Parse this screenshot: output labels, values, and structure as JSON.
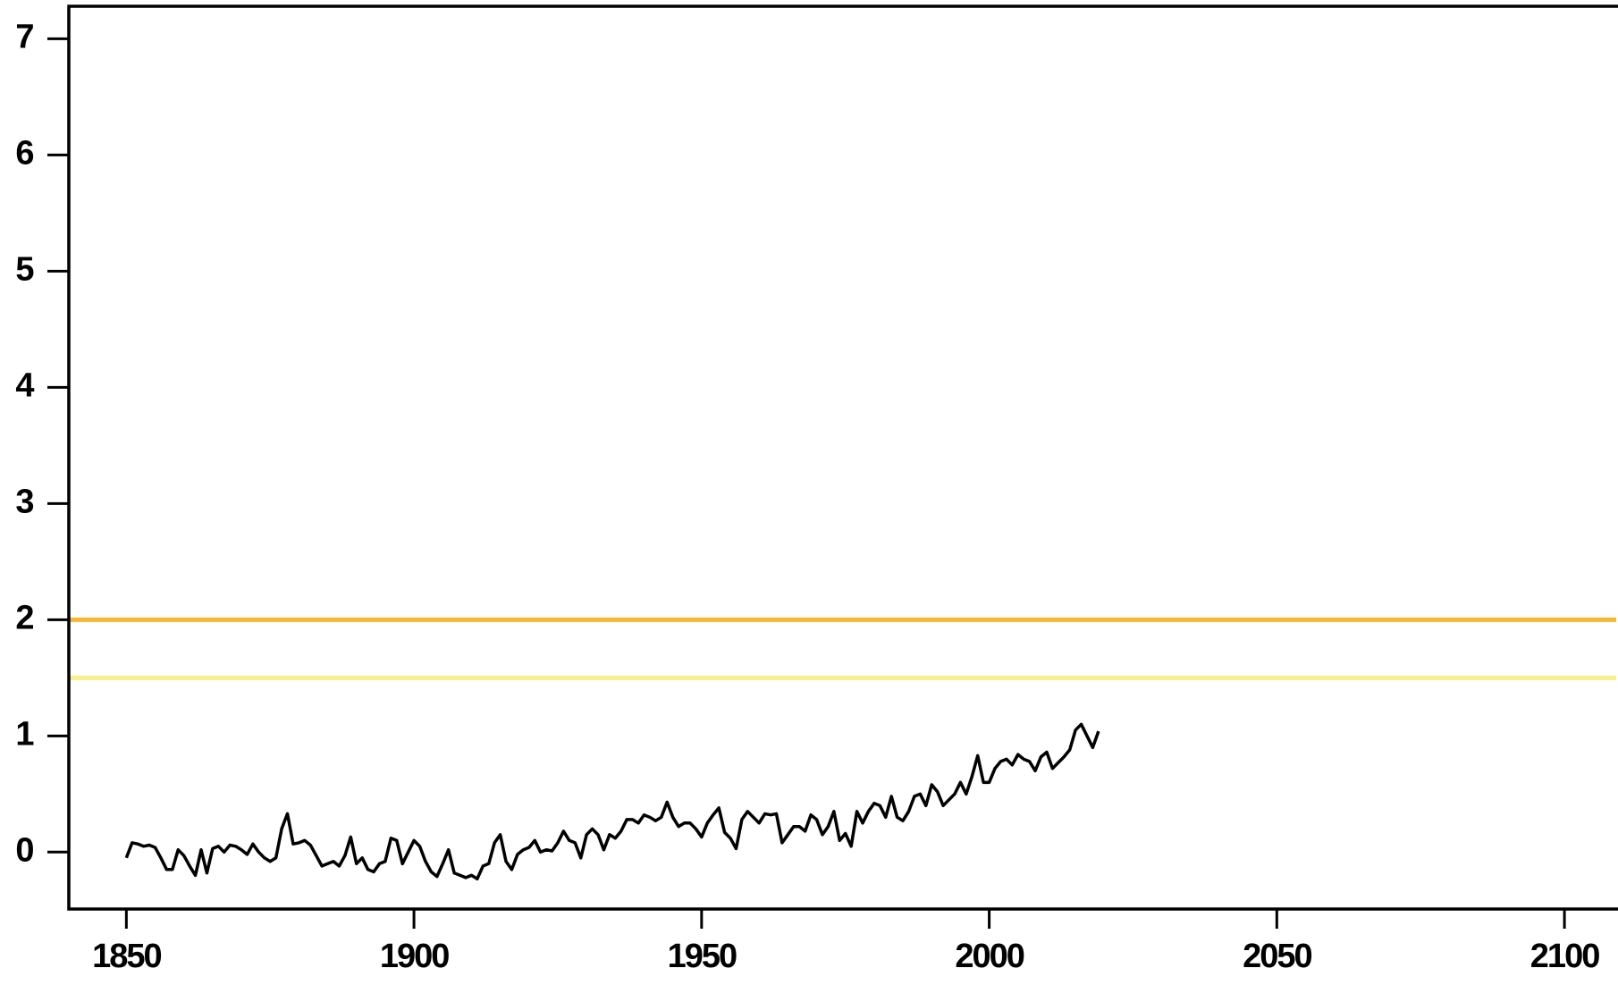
{
  "chart_data": {
    "type": "line",
    "x": [
      1850,
      1851,
      1852,
      1853,
      1854,
      1855,
      1856,
      1857,
      1858,
      1859,
      1860,
      1861,
      1862,
      1863,
      1864,
      1865,
      1866,
      1867,
      1868,
      1869,
      1870,
      1871,
      1872,
      1873,
      1874,
      1875,
      1876,
      1877,
      1878,
      1879,
      1880,
      1881,
      1882,
      1883,
      1884,
      1885,
      1886,
      1887,
      1888,
      1889,
      1890,
      1891,
      1892,
      1893,
      1894,
      1895,
      1896,
      1897,
      1898,
      1899,
      1900,
      1901,
      1902,
      1903,
      1904,
      1905,
      1906,
      1907,
      1908,
      1909,
      1910,
      1911,
      1912,
      1913,
      1914,
      1915,
      1916,
      1917,
      1918,
      1919,
      1920,
      1921,
      1922,
      1923,
      1924,
      1925,
      1926,
      1927,
      1928,
      1929,
      1930,
      1931,
      1932,
      1933,
      1934,
      1935,
      1936,
      1937,
      1938,
      1939,
      1940,
      1941,
      1942,
      1943,
      1944,
      1945,
      1946,
      1947,
      1948,
      1949,
      1950,
      1951,
      1952,
      1953,
      1954,
      1955,
      1956,
      1957,
      1958,
      1959,
      1960,
      1961,
      1962,
      1963,
      1964,
      1965,
      1966,
      1967,
      1968,
      1969,
      1970,
      1971,
      1972,
      1973,
      1974,
      1975,
      1976,
      1977,
      1978,
      1979,
      1980,
      1981,
      1982,
      1983,
      1984,
      1985,
      1986,
      1987,
      1988,
      1989,
      1990,
      1991,
      1992,
      1993,
      1994,
      1995,
      1996,
      1997,
      1998,
      1999,
      2000,
      2001,
      2002,
      2003,
      2004,
      2005,
      2006,
      2007,
      2008,
      2009,
      2010,
      2011,
      2012,
      2013,
      2014,
      2015,
      2016,
      2017,
      2018,
      2019
    ],
    "series": [
      {
        "color": "#000000",
        "values": [
          -0.05,
          0.08,
          0.07,
          0.05,
          0.06,
          0.04,
          -0.05,
          -0.15,
          -0.15,
          0.02,
          -0.03,
          -0.12,
          -0.2,
          0.02,
          -0.18,
          0.03,
          0.05,
          0.0,
          0.06,
          0.05,
          0.02,
          -0.02,
          0.07,
          0.0,
          -0.05,
          -0.08,
          -0.05,
          0.2,
          0.33,
          0.07,
          0.08,
          0.1,
          0.06,
          -0.03,
          -0.12,
          -0.1,
          -0.08,
          -0.12,
          -0.03,
          0.13,
          -0.1,
          -0.05,
          -0.15,
          -0.17,
          -0.1,
          -0.08,
          0.12,
          0.1,
          -0.1,
          0.0,
          0.1,
          0.05,
          -0.08,
          -0.17,
          -0.21,
          -0.1,
          0.02,
          -0.18,
          -0.2,
          -0.22,
          -0.2,
          -0.23,
          -0.12,
          -0.1,
          0.08,
          0.15,
          -0.08,
          -0.15,
          -0.02,
          0.02,
          0.04,
          0.1,
          0.0,
          0.02,
          0.01,
          0.08,
          0.18,
          0.1,
          0.08,
          -0.05,
          0.15,
          0.2,
          0.15,
          0.02,
          0.15,
          0.12,
          0.18,
          0.28,
          0.28,
          0.25,
          0.32,
          0.3,
          0.27,
          0.3,
          0.43,
          0.3,
          0.22,
          0.25,
          0.25,
          0.2,
          0.13,
          0.25,
          0.32,
          0.38,
          0.17,
          0.12,
          0.03,
          0.28,
          0.35,
          0.3,
          0.25,
          0.33,
          0.32,
          0.33,
          0.08,
          0.15,
          0.22,
          0.22,
          0.18,
          0.32,
          0.28,
          0.15,
          0.22,
          0.35,
          0.1,
          0.16,
          0.05,
          0.35,
          0.25,
          0.35,
          0.42,
          0.4,
          0.3,
          0.48,
          0.3,
          0.27,
          0.35,
          0.48,
          0.5,
          0.4,
          0.58,
          0.52,
          0.4,
          0.45,
          0.5,
          0.6,
          0.5,
          0.65,
          0.83,
          0.6,
          0.6,
          0.72,
          0.78,
          0.8,
          0.75,
          0.84,
          0.8,
          0.78,
          0.7,
          0.82,
          0.86,
          0.72,
          0.77,
          0.82,
          0.88,
          1.05,
          1.1,
          1.0,
          0.9,
          1.04
        ]
      }
    ],
    "reference_lines": [
      {
        "value": 2,
        "color": "#f4b731"
      },
      {
        "value": 1.5,
        "color": "#f8f08a"
      }
    ],
    "xlim": [
      1840,
      2109
    ],
    "xticks": [
      1850,
      1900,
      1950,
      2000,
      2050,
      2100
    ],
    "ylim": [
      -0.49,
      7.28
    ],
    "yticks": [
      0,
      1,
      2,
      3,
      4,
      5,
      6,
      7
    ]
  }
}
